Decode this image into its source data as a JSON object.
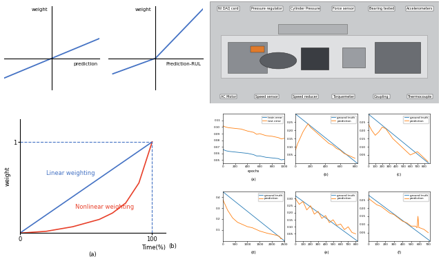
{
  "chart_data": [
    {
      "type": "line",
      "tick_labels": false,
      "xlim": [
        -1,
        1
      ],
      "ylim": [
        -0.6,
        1
      ],
      "xlabel": "prediction",
      "ylabel": "weight",
      "series": [
        {
          "color": "#4472c4",
          "x": [
            -1,
            0,
            1
          ],
          "values": [
            -0.38,
            0,
            0.38
          ]
        }
      ]
    },
    {
      "type": "line",
      "tick_labels": false,
      "xlim": [
        -1,
        1
      ],
      "ylim": [
        -0.6,
        1
      ],
      "xlabel": "Prediction-RUL",
      "ylabel": "weight",
      "series": [
        {
          "color": "#4472c4",
          "x": [
            -0.9,
            0,
            1
          ],
          "values": [
            -0.3,
            0,
            0.95
          ]
        }
      ]
    },
    {
      "type": "line",
      "xlim": [
        0,
        110
      ],
      "ylim": [
        0,
        1.25
      ],
      "xticks": [
        0,
        100
      ],
      "yticks": [
        1
      ],
      "xlabel": "Time(%)",
      "ylabel": "weight",
      "annotations": [
        "(a)",
        "(b)"
      ],
      "series": [
        {
          "name": "Linear weighting",
          "color": "#4472c4",
          "x": [
            0,
            100
          ],
          "values": [
            0,
            1
          ]
        },
        {
          "name": "Nonlinear weighting",
          "color": "#e8402a",
          "x": [
            0,
            20,
            40,
            60,
            70,
            80,
            90,
            100
          ],
          "values": [
            0,
            0.02,
            0.07,
            0.15,
            0.22,
            0.33,
            0.55,
            1
          ]
        }
      ]
    },
    {
      "type": "line",
      "title": "(a)",
      "xlabel": "epochs",
      "legend": "upper right",
      "xlim": [
        0,
        1000
      ],
      "ylim": [
        0.045,
        0.12
      ],
      "xticks": [
        0,
        200,
        400,
        600,
        800,
        1000
      ],
      "yticks": [
        0.05,
        0.06,
        0.07,
        0.08,
        0.09,
        {
          "value": 0.1,
          "label": "0.10"
        },
        0.11
      ],
      "series": [
        {
          "name": "train error",
          "color": "#1f77b4",
          "x": [
            0,
            50,
            100,
            200,
            300,
            400,
            500,
            550,
            600,
            700,
            800,
            900,
            950,
            1000
          ],
          "values": [
            0.066,
            0.064,
            0.063,
            0.062,
            0.061,
            0.06,
            0.058,
            0.056,
            0.056,
            0.054,
            0.053,
            0.052,
            0.05,
            0.051
          ]
        },
        {
          "name": "test error",
          "color": "#ff7f0e",
          "x": [
            0,
            50,
            100,
            200,
            300,
            400,
            500,
            550,
            600,
            700,
            800,
            900,
            950,
            1000
          ],
          "values": [
            0.102,
            0.1,
            0.099,
            0.098,
            0.097,
            0.094,
            0.092,
            0.089,
            0.09,
            0.087,
            0.086,
            0.084,
            0.082,
            0.083
          ]
        }
      ]
    },
    {
      "type": "line",
      "title": "(b)",
      "legend": "upper right",
      "xlim": [
        0,
        830
      ],
      "ylim": [
        0,
        0.3
      ],
      "xticks": [
        0,
        200,
        400,
        600,
        800
      ],
      "yticks": [
        0.05,
        {
          "value": 0.1,
          "label": "0.10"
        },
        0.15,
        {
          "value": 0.2,
          "label": "0.20"
        },
        0.25
      ],
      "series": [
        {
          "name": "ground truth",
          "color": "#1f77b4",
          "x": [
            0,
            830
          ],
          "values": [
            0.3,
            0
          ]
        },
        {
          "name": "prediction",
          "color": "#ff7f0e",
          "x": [
            0,
            30,
            60,
            100,
            140,
            170,
            200,
            250,
            300,
            350,
            400,
            450,
            500,
            550,
            600,
            650,
            700,
            750,
            800
          ],
          "values": [
            0.08,
            0.12,
            0.15,
            0.19,
            0.22,
            0.24,
            0.22,
            0.2,
            0.18,
            0.16,
            0.14,
            0.12,
            0.11,
            0.09,
            0.08,
            0.06,
            0.05,
            0.04,
            0.03
          ]
        }
      ]
    },
    {
      "type": "line",
      "title": "(c)",
      "legend": "upper right",
      "xlim": [
        0,
        880
      ],
      "ylim": [
        0,
        0.3
      ],
      "xticks": [
        0,
        100,
        200,
        300,
        400,
        500,
        600,
        700,
        800
      ],
      "yticks": [
        0.05,
        {
          "value": 0.1,
          "label": "0.10"
        },
        0.15,
        {
          "value": 0.2,
          "label": "0.20"
        },
        0.25
      ],
      "series": [
        {
          "name": "ground truth",
          "color": "#1f77b4",
          "x": [
            0,
            860
          ],
          "values": [
            0.3,
            0
          ]
        },
        {
          "name": "prediction",
          "color": "#ff7f0e",
          "x": [
            0,
            50,
            100,
            150,
            200,
            250,
            300,
            350,
            400,
            450,
            500,
            550,
            600,
            650,
            700,
            750,
            800,
            850
          ],
          "values": [
            0.24,
            0.2,
            0.17,
            0.19,
            0.22,
            0.21,
            0.18,
            0.15,
            0.13,
            0.11,
            0.09,
            0.07,
            0.05,
            0.06,
            0.07,
            0.05,
            0.03,
            0.01
          ]
        }
      ]
    },
    {
      "type": "line",
      "title": "(d)",
      "legend": "upper right",
      "xlim": [
        0,
        2500
      ],
      "ylim": [
        0,
        0.45
      ],
      "xticks": [
        0,
        500,
        1000,
        1500,
        2000,
        2500
      ],
      "yticks": [
        0.1,
        0.2,
        0.3,
        0.4
      ],
      "series": [
        {
          "name": "ground truth",
          "color": "#1f77b4",
          "x": [
            0,
            2500
          ],
          "values": [
            0.45,
            0
          ]
        },
        {
          "name": "prediction",
          "color": "#ff7f0e",
          "x": [
            0,
            100,
            200,
            400,
            600,
            800,
            1000,
            1200,
            1500,
            1800,
            2000,
            2200,
            2300,
            2350,
            2400
          ],
          "values": [
            0.38,
            0.33,
            0.28,
            0.21,
            0.17,
            0.15,
            0.13,
            0.12,
            0.09,
            0.07,
            0.06,
            0.05,
            0.04,
            0.02,
            0.02
          ]
        }
      ]
    },
    {
      "type": "line",
      "title": "(e)",
      "legend": "upper right",
      "xlim": [
        0,
        820
      ],
      "ylim": [
        0,
        0.35
      ],
      "xticks": [
        0,
        100,
        200,
        300,
        400,
        500,
        600,
        700,
        800
      ],
      "yticks": [
        0.05,
        {
          "value": 0.1,
          "label": "0.10"
        },
        0.15,
        {
          "value": 0.2,
          "label": "0.20"
        },
        0.25,
        {
          "value": 0.3,
          "label": "0.30"
        }
      ],
      "series": [
        {
          "name": "ground truth",
          "color": "#1f77b4",
          "x": [
            0,
            820
          ],
          "values": [
            0.32,
            0
          ]
        },
        {
          "name": "prediction",
          "color": "#ff7f0e",
          "x": [
            0,
            50,
            100,
            150,
            200,
            250,
            300,
            350,
            400,
            450,
            500,
            550,
            600,
            650,
            700,
            750,
            800
          ],
          "values": [
            0.3,
            0.26,
            0.28,
            0.22,
            0.25,
            0.19,
            0.21,
            0.16,
            0.18,
            0.13,
            0.15,
            0.11,
            0.12,
            0.08,
            0.1,
            0.06,
            0.05
          ]
        }
      ]
    },
    {
      "type": "line",
      "title": "(f)",
      "legend": "upper right",
      "xlim": [
        0,
        720
      ],
      "ylim": [
        0,
        0.3
      ],
      "xticks": [
        0,
        100,
        200,
        300,
        400,
        500,
        600,
        700
      ],
      "yticks": [
        0.05,
        {
          "value": 0.1,
          "label": "0.10"
        },
        0.15,
        {
          "value": 0.2,
          "label": "0.20"
        },
        0.25
      ],
      "series": [
        {
          "name": "ground truth",
          "color": "#1f77b4",
          "x": [
            0,
            720
          ],
          "values": [
            0.28,
            0
          ]
        },
        {
          "name": "prediction",
          "color": "#ff7f0e",
          "x": [
            0,
            50,
            100,
            150,
            200,
            250,
            300,
            350,
            400,
            450,
            500,
            550,
            570,
            580,
            590,
            600,
            650,
            700
          ],
          "values": [
            0.26,
            0.24,
            0.22,
            0.21,
            0.19,
            0.17,
            0.16,
            0.14,
            0.12,
            0.11,
            0.09,
            0.09,
            0.08,
            0.15,
            0.08,
            0.08,
            0.07,
            0.05
          ]
        }
      ]
    }
  ],
  "photo": {
    "top_labels": [
      "NI DAQ card",
      "Pressure regulator",
      "Cylinder Pressure",
      "Force sensor",
      "Bearing tested",
      "Accelerometers"
    ],
    "bottom_labels": [
      "AC Motor",
      "Speed sensor",
      "Speed reducer",
      "Torquemeter",
      "Coupling",
      "Thermocouple"
    ]
  }
}
